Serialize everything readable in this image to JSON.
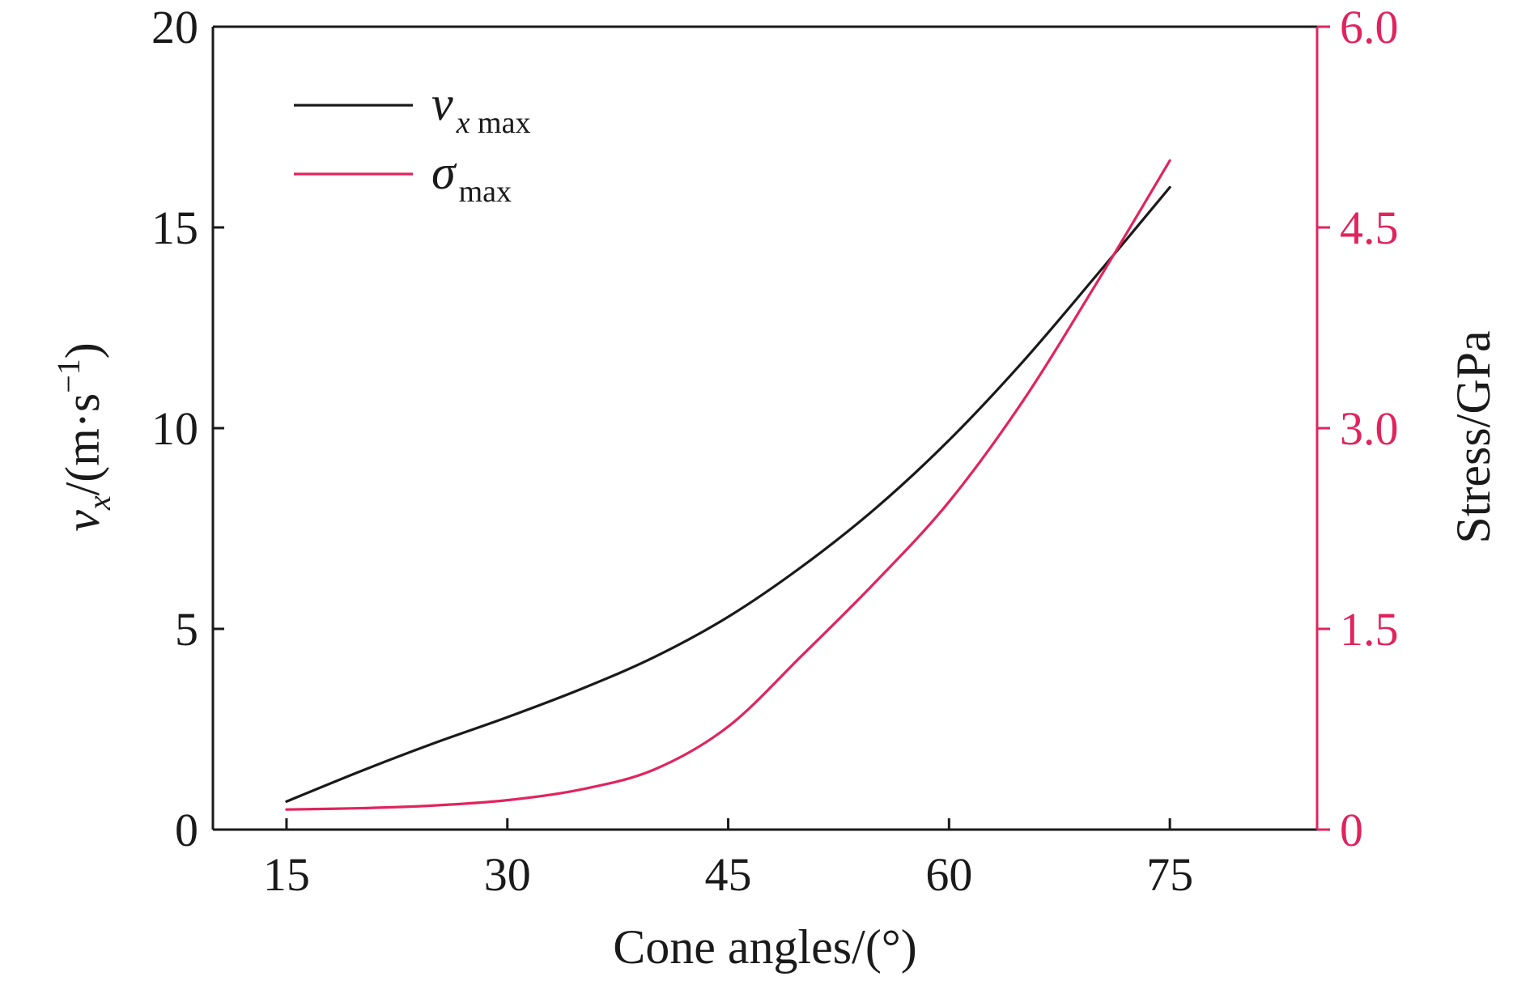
{
  "chart_data": {
    "type": "line",
    "title": "",
    "xlabel": "Cone angles/(°)",
    "ylabel": {
      "var": "v",
      "sub": "x",
      "unit": "/(m·s",
      "sup": "−1",
      "close": ")"
    },
    "y2label": "Stress/GPa",
    "xlim": [
      10,
      85
    ],
    "ylim": [
      0,
      20
    ],
    "y2lim": [
      0,
      6
    ],
    "x_ticks": [
      15,
      30,
      45,
      60,
      75
    ],
    "x_tick_labels": [
      "15",
      "30",
      "45",
      "60",
      "75"
    ],
    "y_ticks": [
      0,
      5,
      10,
      15,
      20
    ],
    "y_tick_labels": [
      "0",
      "5",
      "10",
      "15",
      "20"
    ],
    "y2_ticks": [
      0,
      1.5,
      3,
      4.5,
      6
    ],
    "y2_tick_labels": [
      "0",
      "1.5",
      "3.0",
      "4.5",
      "6.0"
    ],
    "grid": false,
    "legend_position": "top-left",
    "series": [
      {
        "name": "v_x max",
        "legend": {
          "main": "v",
          "sub": "x max"
        },
        "axis": "left",
        "color": "#1a1a1a",
        "x": [
          15,
          20,
          25,
          30,
          35,
          40,
          45,
          50,
          55,
          60,
          65,
          70,
          75
        ],
        "y": [
          0.7,
          1.45,
          2.15,
          2.8,
          3.5,
          4.3,
          5.3,
          6.55,
          8.0,
          9.7,
          11.65,
          13.8,
          16.0
        ]
      },
      {
        "name": "σmax",
        "legend": {
          "main": "σ",
          "sub": "max"
        },
        "axis": "right",
        "color": "#e0245e",
        "x": [
          15,
          20,
          25,
          30,
          35,
          40,
          45,
          50,
          55,
          60,
          65,
          70,
          75
        ],
        "y": [
          0.15,
          0.16,
          0.18,
          0.22,
          0.3,
          0.45,
          0.77,
          1.3,
          1.85,
          2.45,
          3.2,
          4.08,
          5.0
        ]
      }
    ],
    "colors": {
      "axis": "#1a1a1a",
      "right_axis": "#e0245e"
    }
  }
}
